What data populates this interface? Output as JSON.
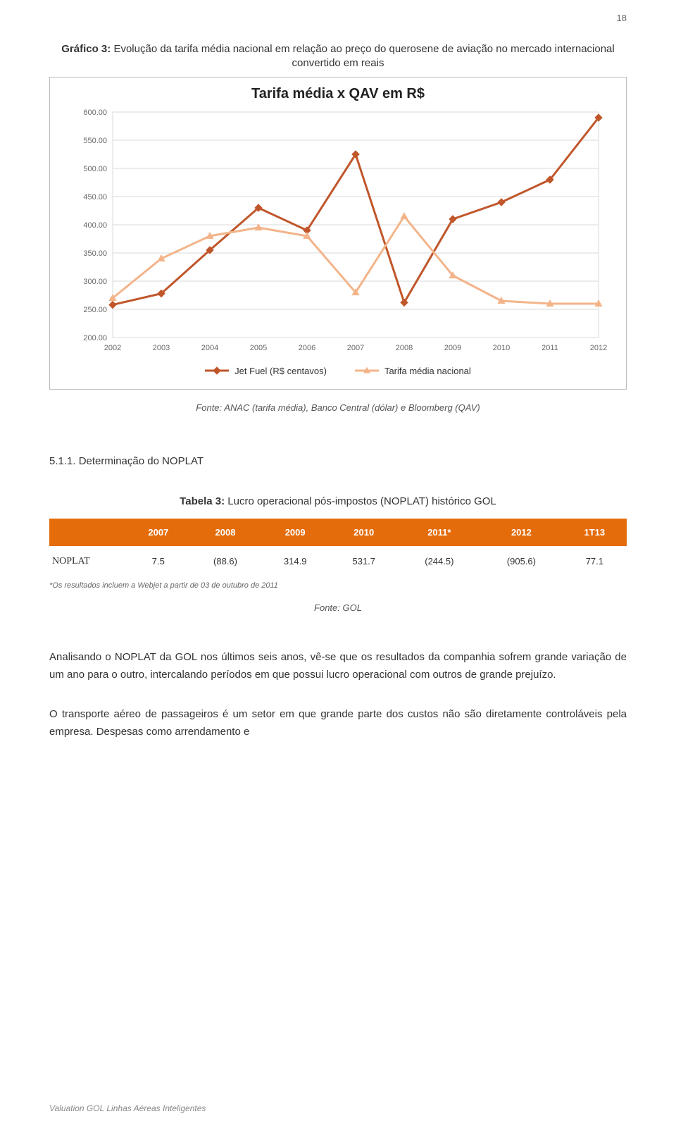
{
  "page_number": "18",
  "fig3": {
    "label_bold": "Gráfico 3:",
    "label_rest": " Evolução da tarifa média nacional em relação ao preço do querosene de aviação no mercado internacional convertido em reais",
    "chart_title": "Tarifa média x QAV em R$",
    "type": "line",
    "x_categories": [
      "2002",
      "2003",
      "2004",
      "2005",
      "2006",
      "2007",
      "2008",
      "2009",
      "2010",
      "2011",
      "2012"
    ],
    "y_ticks": [
      200,
      250,
      300,
      350,
      400,
      450,
      500,
      550,
      600
    ],
    "ylim": [
      200,
      600
    ],
    "series": [
      {
        "name": "Jet Fuel (R$ centavos)",
        "color": "#c0562a",
        "marker": "diamond",
        "marker_size": 8,
        "line_width": 3,
        "values": [
          258,
          278,
          355,
          430,
          390,
          525,
          262,
          410,
          440,
          480,
          590
        ]
      },
      {
        "name": "Tarifa média nacional",
        "color": "#f3b48a",
        "marker": "triangle",
        "marker_size": 9,
        "line_width": 3,
        "values": [
          270,
          340,
          380,
          395,
          380,
          280,
          415,
          310,
          265,
          260,
          260
        ]
      }
    ],
    "plot_bg": "#ffffff",
    "grid_color": "#d9d9d9",
    "axis_label_color": "#666666",
    "axis_label_fontsize": 11,
    "source": "Fonte: ANAC (tarifa média), Banco Central (dólar) e Bloomberg (QAV)"
  },
  "section_heading": "5.1.1. Determinação do NOPLAT",
  "table3": {
    "caption_bold": "Tabela 3:",
    "caption_rest": " Lucro operacional pós-impostos (NOPLAT) histórico GOL",
    "header_bg": "#e46c0a",
    "header_fg": "#ffffff",
    "columns": [
      "",
      "2007",
      "2008",
      "2009",
      "2010",
      "2011*",
      "2012",
      "1T13"
    ],
    "row_label": "NOPLAT",
    "values": [
      "7.5",
      "(88.6)",
      "314.9",
      "531.7",
      "(244.5)",
      "(905.6)",
      "77.1"
    ],
    "footnote": "*Os resultados incluem a Webjet a partir de 03 de outubro de 2011",
    "source": "Fonte: GOL"
  },
  "paragraphs": [
    "Analisando o NOPLAT da GOL nos últimos seis anos, vê-se que os resultados da companhia sofrem grande variação de um ano para o outro, intercalando períodos em que possui lucro operacional com outros de grande prejuízo.",
    "O transporte aéreo de passageiros é um setor em que grande parte dos custos não são diretamente controláveis pela empresa. Despesas como arrendamento e"
  ],
  "footer": "Valuation GOL Linhas Aéreas Inteligentes"
}
